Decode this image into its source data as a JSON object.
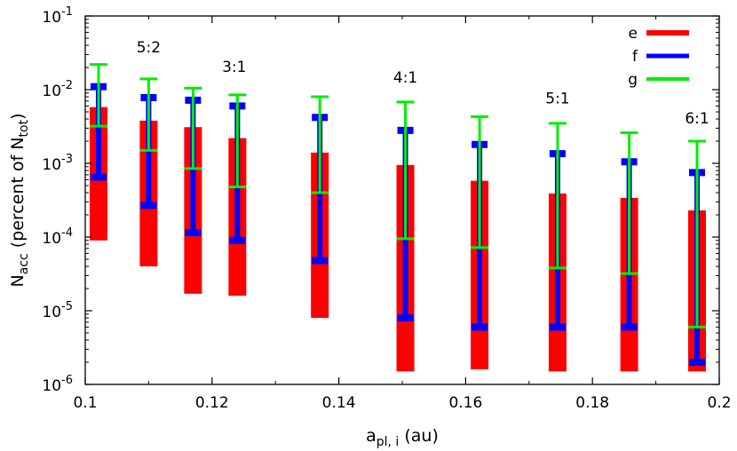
{
  "chart_data": {
    "type": "error-bar",
    "xlabel": {
      "main": "a",
      "sub": "pl, i",
      "tail": " (au)"
    },
    "ylabel": {
      "main": "N",
      "sub": "acc",
      "mid": " (percent of N",
      "sub2": "tot",
      "tail": ")"
    },
    "xlim": [
      0.1,
      0.2
    ],
    "ylim": [
      1e-06,
      0.1
    ],
    "yscale": "log",
    "grid": false,
    "legend_position": "top-right",
    "x_ticks": [
      {
        "value": 0.1,
        "label": "0.1"
      },
      {
        "value": 0.12,
        "label": "0.12"
      },
      {
        "value": 0.14,
        "label": "0.14"
      },
      {
        "value": 0.16,
        "label": "0.16"
      },
      {
        "value": 0.18,
        "label": "0.18"
      },
      {
        "value": 0.2,
        "label": "0.2"
      }
    ],
    "y_ticks": [
      {
        "value": 1e-06,
        "base": "10",
        "exp": "-6"
      },
      {
        "value": 1e-05,
        "base": "10",
        "exp": "-5"
      },
      {
        "value": 0.0001,
        "base": "10",
        "exp": "-4"
      },
      {
        "value": 0.001,
        "base": "10",
        "exp": "-3"
      },
      {
        "value": 0.01,
        "base": "10",
        "exp": "-2"
      },
      {
        "value": 0.1,
        "base": "10",
        "exp": "-1"
      }
    ],
    "resonance_labels": [
      {
        "text": "5:2",
        "x": 0.11,
        "y": 0.032
      },
      {
        "text": "3:1",
        "x": 0.1235,
        "y": 0.0175
      },
      {
        "text": "4:1",
        "x": 0.1505,
        "y": 0.0125
      },
      {
        "text": "5:1",
        "x": 0.1745,
        "y": 0.0065
      },
      {
        "text": "6:1",
        "x": 0.1965,
        "y": 0.0035
      }
    ],
    "series": [
      {
        "name": "e",
        "color": "#ff0000",
        "style": "box",
        "points": [
          {
            "x": 0.1021,
            "low": 9e-05,
            "high": 0.0058
          },
          {
            "x": 0.11,
            "low": 4e-05,
            "high": 0.0038
          },
          {
            "x": 0.117,
            "low": 1.7e-05,
            "high": 0.0031
          },
          {
            "x": 0.124,
            "low": 1.6e-05,
            "high": 0.0022
          },
          {
            "x": 0.137,
            "low": 8e-06,
            "high": 0.0014
          },
          {
            "x": 0.1505,
            "low": 1.5e-06,
            "high": 0.00095
          },
          {
            "x": 0.1622,
            "low": 1.6e-06,
            "high": 0.00058
          },
          {
            "x": 0.1745,
            "low": 1.5e-06,
            "high": 0.00039
          },
          {
            "x": 0.1858,
            "low": 1.5e-06,
            "high": 0.00034
          },
          {
            "x": 0.1965,
            "low": 1.5e-06,
            "high": 0.00023
          }
        ]
      },
      {
        "name": "f",
        "color": "#0000ff",
        "style": "errorbar",
        "points": [
          {
            "x": 0.1021,
            "low": 0.00065,
            "high": 0.011
          },
          {
            "x": 0.11,
            "low": 0.00027,
            "high": 0.0078
          },
          {
            "x": 0.117,
            "low": 0.000115,
            "high": 0.0072
          },
          {
            "x": 0.124,
            "low": 9e-05,
            "high": 0.006
          },
          {
            "x": 0.137,
            "low": 4.8e-05,
            "high": 0.0042
          },
          {
            "x": 0.1505,
            "low": 8e-06,
            "high": 0.0028
          },
          {
            "x": 0.1622,
            "low": 6e-06,
            "high": 0.0018
          },
          {
            "x": 0.1745,
            "low": 6e-06,
            "high": 0.00135
          },
          {
            "x": 0.1858,
            "low": 6e-06,
            "high": 0.00105
          },
          {
            "x": 0.1965,
            "low": 2e-06,
            "high": 0.00075
          }
        ]
      },
      {
        "name": "g",
        "color": "#00ee00",
        "style": "errorbar",
        "points": [
          {
            "x": 0.1021,
            "low": 0.0032,
            "high": 0.022
          },
          {
            "x": 0.11,
            "low": 0.0015,
            "high": 0.014
          },
          {
            "x": 0.117,
            "low": 0.00085,
            "high": 0.0105
          },
          {
            "x": 0.124,
            "low": 0.00048,
            "high": 0.0085
          },
          {
            "x": 0.137,
            "low": 0.0004,
            "high": 0.008
          },
          {
            "x": 0.1505,
            "low": 9.5e-05,
            "high": 0.0068
          },
          {
            "x": 0.1622,
            "low": 7.2e-05,
            "high": 0.0043
          },
          {
            "x": 0.1745,
            "low": 3.8e-05,
            "high": 0.0035
          },
          {
            "x": 0.1858,
            "low": 3.2e-05,
            "high": 0.0026
          },
          {
            "x": 0.1965,
            "low": 6e-06,
            "high": 0.002
          }
        ]
      }
    ]
  }
}
